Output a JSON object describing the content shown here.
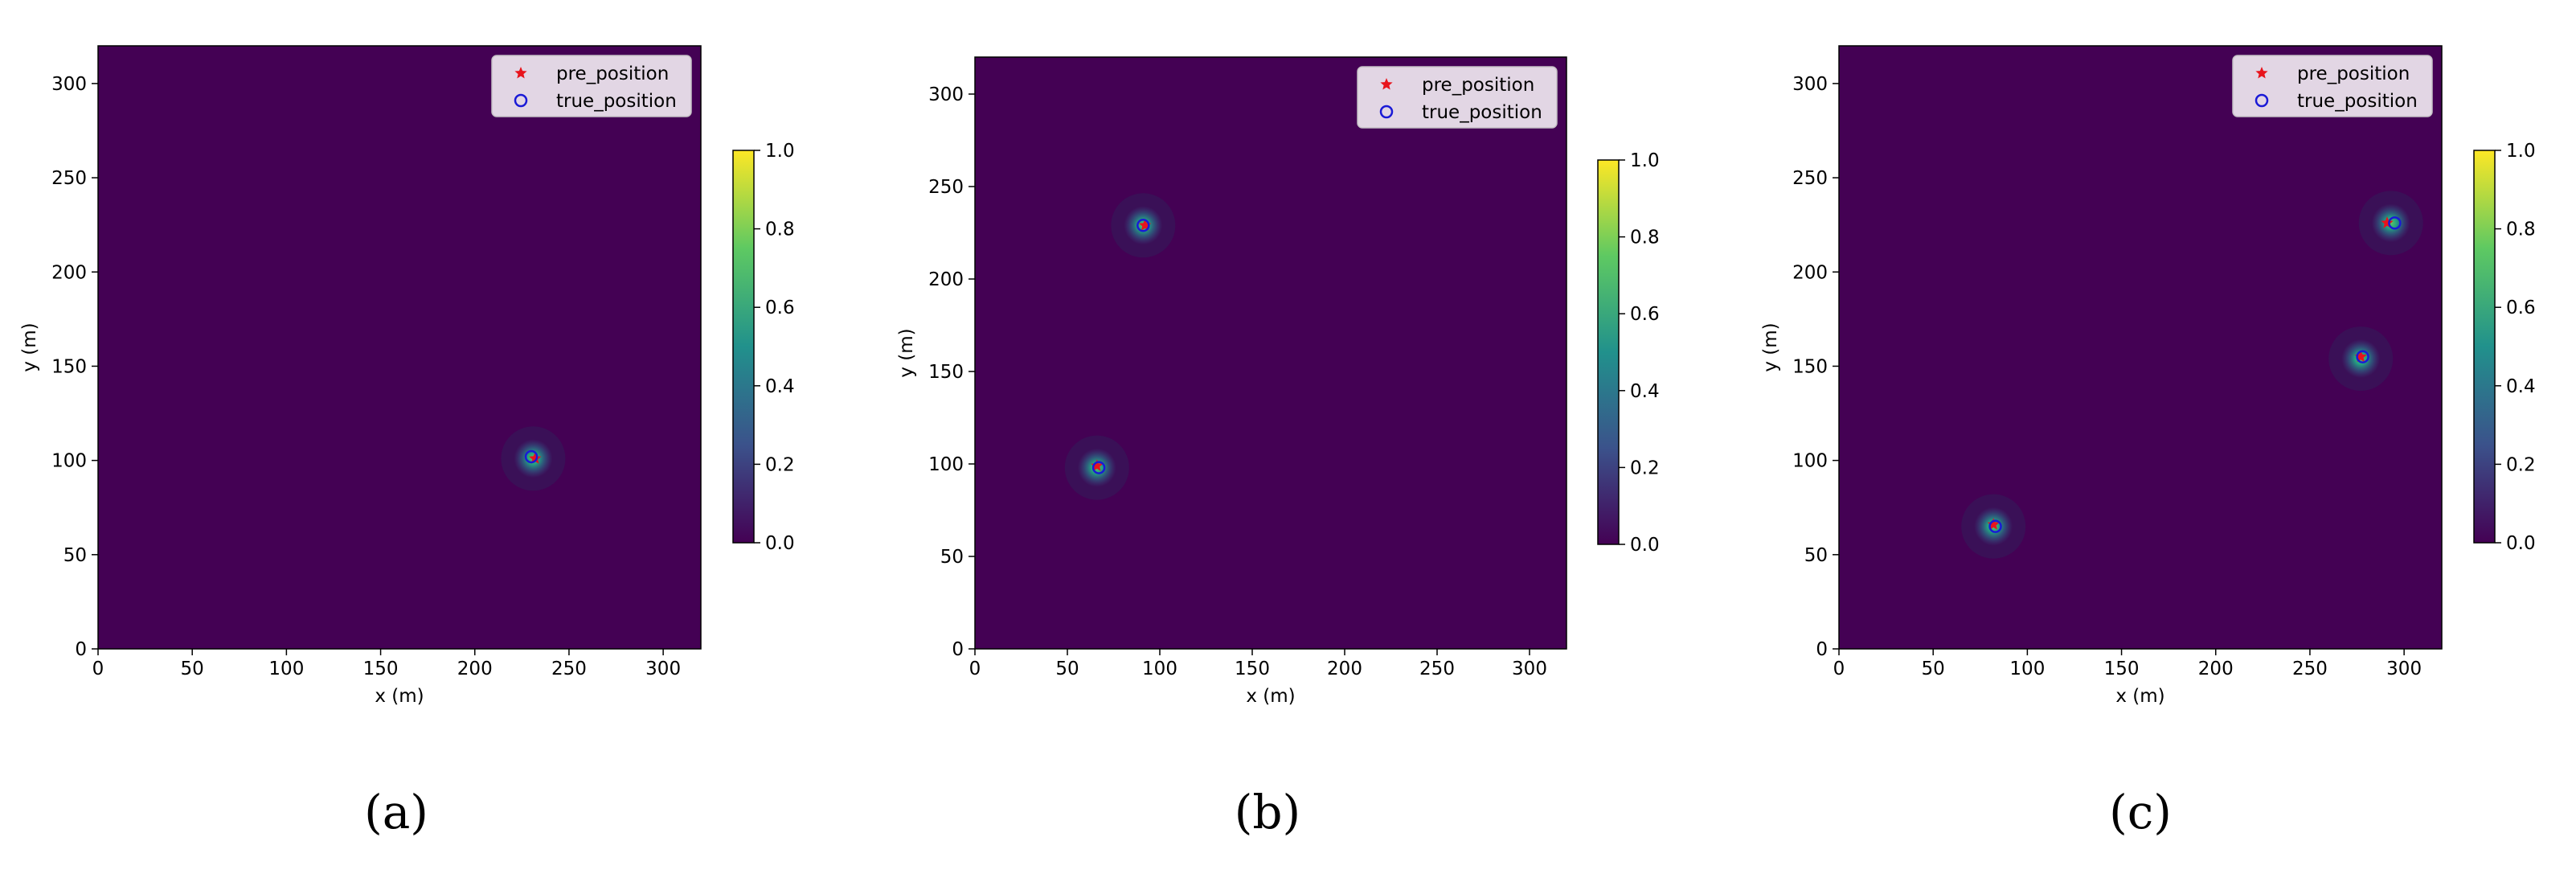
{
  "colors": {
    "background": "#440154",
    "pre_marker": "#e8141c",
    "true_marker": "#1a1ad6",
    "legend_bg": "#ebe2ec",
    "legend_border": "#cccccc"
  },
  "colorbar": {
    "colormap": "viridis",
    "range": [
      0,
      1
    ],
    "ticks": [
      "0.0",
      "0.2",
      "0.4",
      "0.6",
      "0.8",
      "1.0"
    ]
  },
  "chart_data": [
    {
      "type": "heatmap",
      "caption": "(a)",
      "xlabel": "x (m)",
      "ylabel": "y (m)",
      "xlim": [
        0,
        320
      ],
      "ylim": [
        0,
        320
      ],
      "xticks": [
        0,
        50,
        100,
        150,
        200,
        250,
        300
      ],
      "yticks": [
        0,
        50,
        100,
        150,
        200,
        250,
        300
      ],
      "legend": {
        "position": "upper-right",
        "entries": [
          "pre_position",
          "true_position"
        ]
      },
      "series": [
        {
          "name": "pre_position",
          "marker": "star",
          "points": [
            [
              232,
              101
            ]
          ]
        },
        {
          "name": "true_position",
          "marker": "circle",
          "points": [
            [
              230,
              102
            ]
          ]
        }
      ],
      "hotspots": [
        [
          231,
          101
        ]
      ]
    },
    {
      "type": "heatmap",
      "caption": "(b)",
      "xlabel": "x (m)",
      "ylabel": "y (m)",
      "xlim": [
        0,
        320
      ],
      "ylim": [
        0,
        320
      ],
      "xticks": [
        0,
        50,
        100,
        150,
        200,
        250,
        300
      ],
      "yticks": [
        0,
        50,
        100,
        150,
        200,
        250,
        300
      ],
      "legend": {
        "position": "upper-right",
        "entries": [
          "pre_position",
          "true_position"
        ]
      },
      "series": [
        {
          "name": "pre_position",
          "marker": "star",
          "points": [
            [
              92,
              229
            ],
            [
              66,
              99
            ]
          ]
        },
        {
          "name": "true_position",
          "marker": "circle",
          "points": [
            [
              91,
              229
            ],
            [
              67,
              98
            ]
          ]
        }
      ],
      "hotspots": [
        [
          91,
          229
        ],
        [
          66,
          98
        ]
      ]
    },
    {
      "type": "heatmap",
      "caption": "(c)",
      "xlabel": "x (m)",
      "ylabel": "y (m)",
      "xlim": [
        0,
        320
      ],
      "ylim": [
        0,
        320
      ],
      "xticks": [
        0,
        50,
        100,
        150,
        200,
        250,
        300
      ],
      "yticks": [
        0,
        50,
        100,
        150,
        200,
        250,
        300
      ],
      "legend": {
        "position": "upper-right",
        "entries": [
          "pre_position",
          "true_position"
        ]
      },
      "series": [
        {
          "name": "pre_position",
          "marker": "star",
          "points": [
            [
              291,
              226
            ],
            [
              277,
              155
            ],
            [
              82,
              66
            ]
          ]
        },
        {
          "name": "true_position",
          "marker": "circle",
          "points": [
            [
              295,
              226
            ],
            [
              278,
              155
            ],
            [
              83,
              65
            ]
          ]
        }
      ],
      "hotspots": [
        [
          293,
          226
        ],
        [
          277,
          154
        ],
        [
          82,
          65
        ]
      ]
    }
  ]
}
